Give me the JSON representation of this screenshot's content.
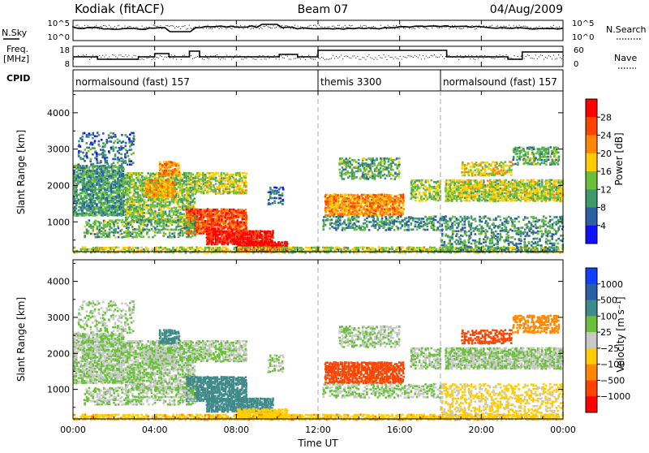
{
  "header": {
    "station": "Kodiak (fitACF)",
    "beam": "Beam 07",
    "date": "04/Aug/2009"
  },
  "top_panels": {
    "nsky_label": "N.Sky",
    "nsky_ticks": [
      "10^5",
      "10^0"
    ],
    "nsearch_label": "N.Search",
    "nsearch_ticks": [
      "10^5",
      "10^0"
    ],
    "freq_label": "Freq.",
    "freq_unit": "[MHz]",
    "freq_ticks": [
      "18",
      "8"
    ],
    "nave_label": "Nave",
    "nave_ticks": [
      "60",
      "0"
    ],
    "cpid_label": "CPID",
    "cpid_segments": [
      {
        "name": "normalsound (fast) 157",
        "start_h": 0,
        "end_h": 12
      },
      {
        "name": "themis 3300",
        "start_h": 12,
        "end_h": 18
      },
      {
        "name": "normalsound (fast) 157",
        "start_h": 18,
        "end_h": 24
      }
    ]
  },
  "chart_data": [
    {
      "type": "heatmap",
      "panel": "power",
      "ylabel": "Slant Range [km]",
      "ylim": [
        180,
        4600
      ],
      "yticks": [
        1000,
        2000,
        3000,
        4000
      ],
      "xlim": [
        0,
        24
      ],
      "colorbar": {
        "label": "Power [dB]",
        "ticks": [
          "28",
          "24",
          "20",
          "16",
          "12",
          "8",
          "4"
        ],
        "colors": [
          "#ff0000",
          "#ff4400",
          "#ff8800",
          "#ffcc00",
          "#6abf3b",
          "#3f9a6a",
          "#2a5fa5",
          "#1010ff"
        ]
      }
    },
    {
      "type": "heatmap",
      "panel": "velocity",
      "ylabel": "Slant Range [km]",
      "ylim": [
        180,
        4600
      ],
      "yticks": [
        1000,
        2000,
        3000,
        4000
      ],
      "xlim": [
        0,
        24
      ],
      "xlabel": "Time UT",
      "xticks": [
        "00:00",
        "04:00",
        "08:00",
        "12:00",
        "16:00",
        "20:00",
        "00:00"
      ],
      "colorbar": {
        "label": "Velocity [m s⁻¹]",
        "ticks": [
          "1000",
          "500",
          "100",
          "25",
          "−25",
          "−100",
          "−500",
          "−1000"
        ],
        "colors": [
          "#1040ff",
          "#2a5fa5",
          "#3f8a8a",
          "#6abf3b",
          "#c8c8c8",
          "#ffcc00",
          "#ff8800",
          "#ff4400",
          "#ff0000"
        ]
      }
    }
  ]
}
